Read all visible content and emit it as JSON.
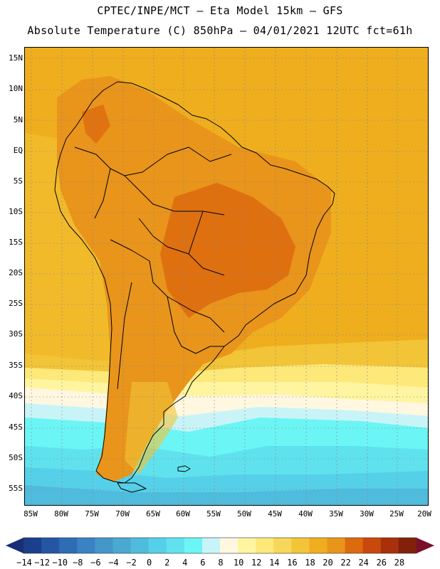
{
  "header": {
    "line1": "CPTEC/INPE/MCT –  Eta Model 15km – GFS",
    "line2": "Absolute Temperature (C) 850hPa – 04/01/2021 12UTC fct=61h"
  },
  "map": {
    "latitude_labels": [
      "15N",
      "10N",
      "5N",
      "EQ",
      "5S",
      "10S",
      "15S",
      "20S",
      "25S",
      "30S",
      "35S",
      "40S",
      "45S",
      "50S",
      "55S"
    ],
    "longitude_labels": [
      "85W",
      "80W",
      "75W",
      "70W",
      "65W",
      "60W",
      "55W",
      "50W",
      "45W",
      "40W",
      "35W",
      "30W",
      "25W",
      "20W"
    ]
  },
  "colorbar": {
    "labels": [
      "-14",
      "-12",
      "-10",
      "-8",
      "-6",
      "-4",
      "-2",
      "0",
      "2",
      "4",
      "6",
      "8",
      "10",
      "12",
      "14",
      "16",
      "18",
      "20",
      "22",
      "24",
      "26",
      "28"
    ],
    "colors": [
      "#1a3f8c",
      "#2456a3",
      "#2e6cb5",
      "#3a82c4",
      "#4496c9",
      "#4aa9d2",
      "#4fbcdd",
      "#56d0e8",
      "#5fe2ee",
      "#6cf5f5",
      "#c8f4f8",
      "#fff7e0",
      "#fff5a0",
      "#fde87a",
      "#f8d65a",
      "#f2c437",
      "#efae1e",
      "#e9941b",
      "#dd6a0e",
      "#c9490c",
      "#a8300b",
      "#822009"
    ],
    "low_extend_color": "#182e78",
    "high_extend_color": "#7a0f2a"
  }
}
